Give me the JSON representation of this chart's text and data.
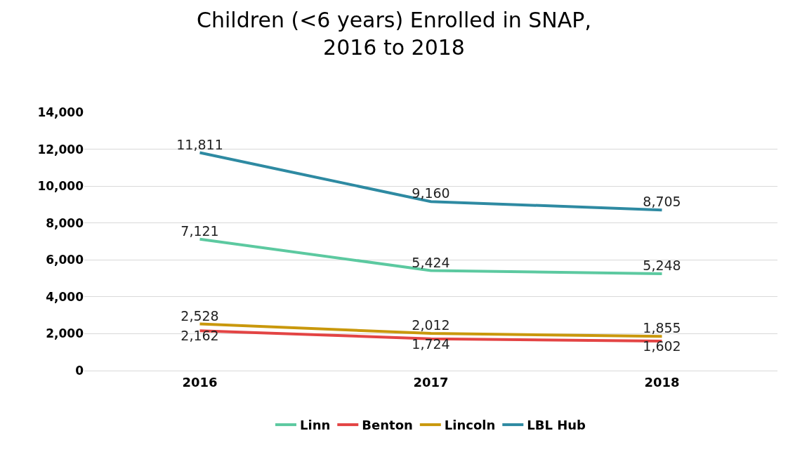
{
  "chart_data": {
    "type": "line",
    "title": "Children (<6 years) Enrolled in SNAP,\n2016 to 2018",
    "categories": [
      "2016",
      "2017",
      "2018"
    ],
    "series": [
      {
        "name": "Linn",
        "color": "#5cc9a0",
        "values": [
          7121,
          5424,
          5248
        ],
        "value_labels": [
          "7,121",
          "5,424",
          "5,248"
        ]
      },
      {
        "name": "Benton",
        "color": "#e34444",
        "values": [
          2162,
          1724,
          1602
        ],
        "value_labels": [
          "2,162",
          "1,724",
          "1,602"
        ]
      },
      {
        "name": "Lincoln",
        "color": "#c9980c",
        "values": [
          2528,
          2012,
          1855
        ],
        "value_labels": [
          "2,528",
          "2,012",
          "1,855"
        ]
      },
      {
        "name": "LBL Hub",
        "color": "#2e8aa2",
        "values": [
          11811,
          9160,
          8705
        ],
        "value_labels": [
          "11,811",
          "9,160",
          "8,705"
        ]
      }
    ],
    "ylim": [
      0,
      14000
    ],
    "yticks": [
      {
        "value": 0,
        "label": "0"
      },
      {
        "value": 2000,
        "label": "2,000"
      },
      {
        "value": 4000,
        "label": "4,000"
      },
      {
        "value": 6000,
        "label": "6,000"
      },
      {
        "value": 8000,
        "label": "8,000"
      },
      {
        "value": 10000,
        "label": "10,000"
      },
      {
        "value": 12000,
        "label": "12,000"
      },
      {
        "value": 14000,
        "label": "14,000"
      }
    ],
    "grid": "y",
    "legend": "bottom",
    "marker": "none",
    "line_style": "solid"
  }
}
